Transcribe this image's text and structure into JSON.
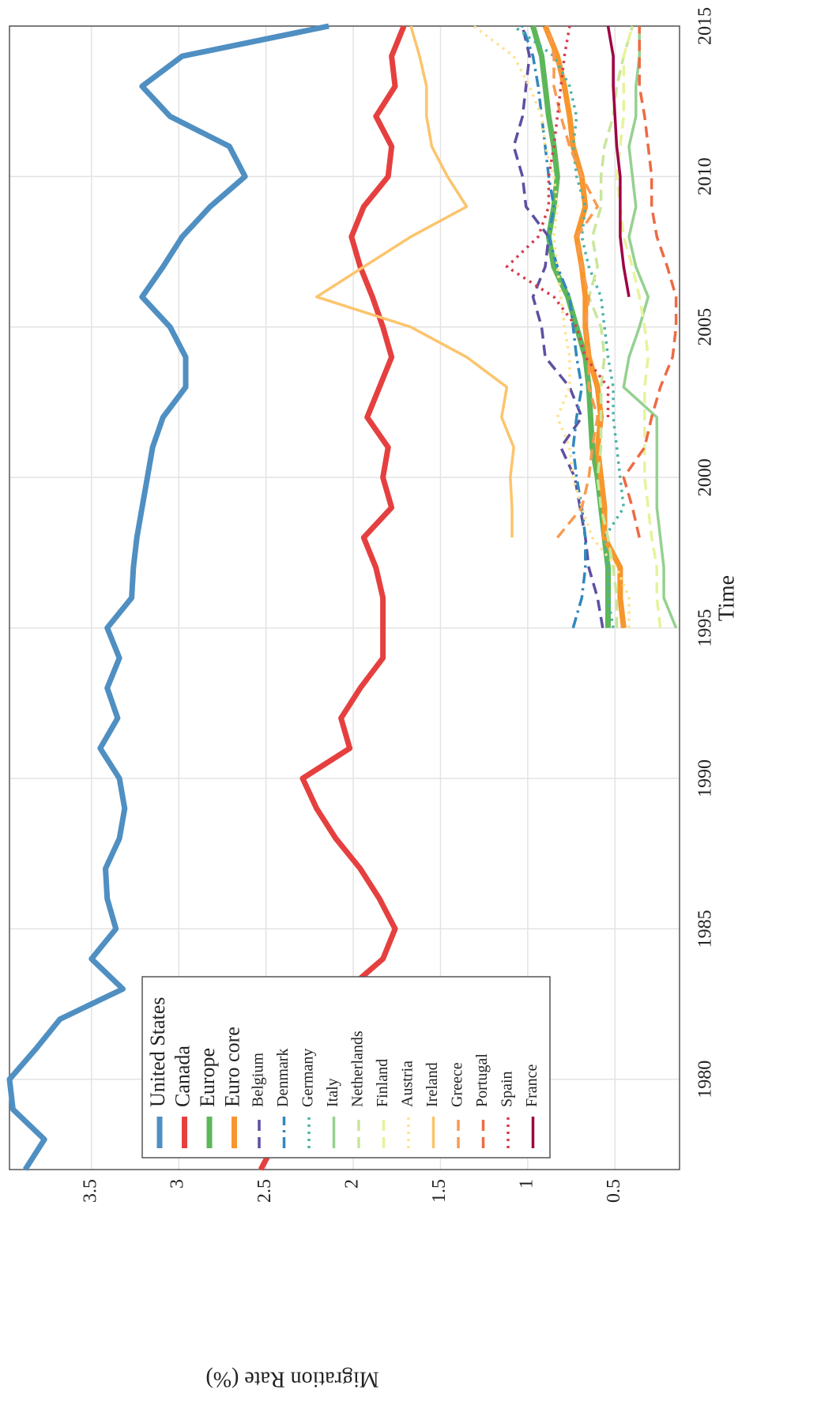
{
  "chart_data": {
    "type": "line",
    "x_label": "Time",
    "y_label": "Migration Rate (%)",
    "x": [
      1977,
      1978,
      1979,
      1980,
      1981,
      1982,
      1983,
      1984,
      1985,
      1986,
      1987,
      1988,
      1989,
      1990,
      1991,
      1992,
      1993,
      1994,
      1995,
      1996,
      1997,
      1998,
      1999,
      2000,
      2001,
      2002,
      2003,
      2004,
      2005,
      2006,
      2007,
      2008,
      2009,
      2010,
      2011,
      2012,
      2013,
      2014,
      2015
    ],
    "xlim": [
      1977,
      2015
    ],
    "xticks": [
      1980,
      1985,
      1990,
      1995,
      2000,
      2005,
      2010,
      2015
    ],
    "ylim": [
      0.13,
      3.97
    ],
    "yticks": [
      0.5,
      1,
      1.5,
      2,
      2.5,
      3,
      3.5
    ],
    "grid": true,
    "legend": "upper left",
    "rotation": -90,
    "series": [
      {
        "name": "United States",
        "color": "#4f8fc2",
        "linestyle": "solid",
        "linewidth": 7,
        "values": [
          3.88,
          3.77,
          3.95,
          3.97,
          3.82,
          3.68,
          3.32,
          3.5,
          3.36,
          3.41,
          3.42,
          3.34,
          3.31,
          3.34,
          3.45,
          3.35,
          3.41,
          3.34,
          3.41,
          3.27,
          3.26,
          3.24,
          3.21,
          3.18,
          3.15,
          3.09,
          2.96,
          2.96,
          3.05,
          3.21,
          3.09,
          2.98,
          2.82,
          2.62,
          2.71,
          3.05,
          3.21,
          2.98,
          2.14
        ]
      },
      {
        "name": "Canada",
        "color": "#e5403f",
        "linestyle": "solid",
        "linewidth": 7,
        "values": [
          2.53,
          2.44,
          2.41,
          2.48,
          2.53,
          2.46,
          2.03,
          1.83,
          1.76,
          1.85,
          1.96,
          2.1,
          2.21,
          2.29,
          2.02,
          2.07,
          1.96,
          1.83,
          1.83,
          1.83,
          1.87,
          1.94,
          1.78,
          1.83,
          1.8,
          1.92,
          1.85,
          1.78,
          1.83,
          1.89,
          1.96,
          2.01,
          1.94,
          1.8,
          1.78,
          1.87,
          1.76,
          1.78,
          1.71
        ]
      },
      {
        "name": "Europe",
        "color": "#5db75a",
        "linestyle": "solid",
        "linewidth": 7,
        "values": [
          null,
          null,
          null,
          null,
          null,
          null,
          null,
          null,
          null,
          null,
          null,
          null,
          null,
          null,
          null,
          null,
          null,
          null,
          0.54,
          0.54,
          0.54,
          0.56,
          0.58,
          0.6,
          0.63,
          0.64,
          0.65,
          0.67,
          0.72,
          0.77,
          0.85,
          0.88,
          0.85,
          0.83,
          0.85,
          0.88,
          0.9,
          0.92,
          0.97
        ]
      },
      {
        "name": "Euro core",
        "color": "#f7962c",
        "linestyle": "solid",
        "linewidth": 7,
        "values": [
          null,
          null,
          null,
          null,
          null,
          null,
          null,
          null,
          null,
          null,
          null,
          null,
          null,
          null,
          null,
          null,
          null,
          null,
          0.45,
          0.47,
          0.47,
          0.56,
          0.56,
          0.58,
          0.6,
          0.58,
          0.6,
          0.65,
          0.67,
          0.67,
          0.69,
          0.72,
          0.67,
          0.69,
          0.74,
          0.76,
          0.79,
          0.83,
          0.9
        ]
      },
      {
        "name": "Belgium",
        "color": "#5e4fa2",
        "linestyle": "dashed",
        "linewidth": 3.5,
        "values": [
          null,
          null,
          null,
          null,
          null,
          null,
          null,
          null,
          null,
          null,
          null,
          null,
          null,
          null,
          null,
          null,
          null,
          null,
          0.57,
          0.6,
          0.65,
          0.67,
          0.7,
          0.73,
          0.81,
          0.69,
          0.76,
          0.9,
          0.92,
          0.97,
          0.9,
          0.88,
          1.01,
          1.03,
          1.08,
          1.03,
          1.01,
          0.99,
          1.03
        ]
      },
      {
        "name": "Denmark",
        "color": "#3288bd",
        "linestyle": "dashdot",
        "linewidth": 3.5,
        "values": [
          null,
          null,
          null,
          null,
          null,
          null,
          null,
          null,
          null,
          null,
          null,
          null,
          null,
          null,
          null,
          null,
          null,
          null,
          0.74,
          0.69,
          0.67,
          0.67,
          0.69,
          0.72,
          0.74,
          0.72,
          0.69,
          0.72,
          0.74,
          0.76,
          0.83,
          0.88,
          0.85,
          0.88,
          0.9,
          0.92,
          0.94,
          0.97,
          1.03
        ]
      },
      {
        "name": "Germany",
        "color": "#4bb3a7",
        "linestyle": "dotted",
        "linewidth": 3.5,
        "values": [
          null,
          null,
          null,
          null,
          null,
          null,
          null,
          null,
          null,
          null,
          null,
          null,
          null,
          null,
          null,
          null,
          null,
          null,
          0.51,
          0.54,
          0.54,
          0.56,
          0.45,
          0.47,
          0.49,
          0.51,
          0.51,
          0.54,
          0.56,
          0.58,
          0.65,
          0.69,
          0.67,
          0.72,
          0.74,
          0.72,
          0.76,
          0.85,
          1.08
        ]
      },
      {
        "name": "Italy",
        "color": "#95d190",
        "linestyle": "solid",
        "linewidth": 3.5,
        "values": [
          null,
          null,
          null,
          null,
          null,
          null,
          null,
          null,
          null,
          null,
          null,
          null,
          null,
          null,
          null,
          null,
          null,
          null,
          0.15,
          0.22,
          0.22,
          0.24,
          0.26,
          0.26,
          0.26,
          0.26,
          0.45,
          0.42,
          0.36,
          0.31,
          0.38,
          0.42,
          0.38,
          0.4,
          0.42,
          0.38,
          0.38,
          0.36,
          0.36
        ]
      },
      {
        "name": "Netherlands",
        "color": "#c9e69a",
        "linestyle": "dashed",
        "linewidth": 3.5,
        "values": [
          null,
          null,
          null,
          null,
          null,
          null,
          null,
          null,
          null,
          null,
          null,
          null,
          null,
          null,
          null,
          null,
          null,
          null,
          0.49,
          0.49,
          0.51,
          0.54,
          0.58,
          0.6,
          0.58,
          0.58,
          0.58,
          0.56,
          0.58,
          0.65,
          0.6,
          0.63,
          0.58,
          0.58,
          0.56,
          0.51,
          0.49,
          0.45,
          0.4
        ]
      },
      {
        "name": "Finland",
        "color": "#e6f39b",
        "linestyle": "dashed",
        "linewidth": 3.5,
        "values": [
          null,
          null,
          null,
          null,
          null,
          null,
          null,
          null,
          null,
          null,
          null,
          null,
          null,
          null,
          null,
          null,
          null,
          null,
          0.24,
          0.26,
          0.26,
          0.29,
          0.31,
          0.33,
          0.33,
          0.33,
          0.33,
          0.31,
          0.33,
          0.36,
          0.4,
          0.45,
          0.47,
          0.49,
          0.47,
          0.45,
          0.45,
          0.45,
          0.4
        ]
      },
      {
        "name": "Austria",
        "color": "#fde28f",
        "linestyle": "dotted",
        "linewidth": 3.5,
        "values": [
          null,
          null,
          null,
          null,
          null,
          null,
          null,
          null,
          null,
          null,
          null,
          null,
          null,
          null,
          null,
          null,
          null,
          null,
          0.42,
          0.42,
          0.49,
          0.63,
          0.69,
          0.74,
          0.76,
          0.83,
          0.76,
          0.76,
          0.79,
          0.81,
          0.83,
          0.85,
          0.83,
          0.85,
          0.9,
          0.92,
          0.99,
          1.08,
          1.31
        ]
      },
      {
        "name": "Ireland",
        "color": "#fcc46c",
        "linestyle": "solid",
        "linewidth": 3.5,
        "values": [
          null,
          null,
          null,
          null,
          null,
          null,
          null,
          null,
          null,
          null,
          null,
          null,
          null,
          null,
          null,
          null,
          null,
          null,
          null,
          null,
          null,
          1.09,
          1.09,
          1.1,
          1.08,
          1.15,
          1.12,
          1.35,
          1.67,
          2.21,
          1.94,
          1.67,
          1.35,
          1.46,
          1.55,
          1.58,
          1.58,
          1.62,
          1.67
        ]
      },
      {
        "name": "Greece",
        "color": "#f99a50",
        "linestyle": "dashed",
        "linewidth": 3.5,
        "values": [
          null,
          null,
          null,
          null,
          null,
          null,
          null,
          null,
          null,
          null,
          null,
          null,
          null,
          null,
          null,
          null,
          null,
          null,
          null,
          null,
          null,
          0.83,
          0.69,
          0.65,
          0.63,
          0.6,
          0.65,
          0.65,
          0.67,
          0.65,
          0.69,
          0.72,
          0.6,
          0.69,
          0.76,
          0.81,
          0.85,
          0.85,
          0.88
        ]
      },
      {
        "name": "Portugal",
        "color": "#ee6a44",
        "linestyle": "dashed",
        "linewidth": 3.5,
        "values": [
          null,
          null,
          null,
          null,
          null,
          null,
          null,
          null,
          null,
          null,
          null,
          null,
          null,
          null,
          null,
          null,
          null,
          null,
          null,
          null,
          null,
          0.36,
          0.4,
          0.45,
          0.33,
          0.29,
          0.24,
          0.17,
          0.15,
          0.15,
          0.2,
          0.26,
          0.29,
          0.29,
          0.31,
          0.33,
          0.36,
          0.36,
          0.36
        ]
      },
      {
        "name": "Spain",
        "color": "#d53e4f",
        "linestyle": "dotted",
        "linewidth": 3.5,
        "values": [
          null,
          null,
          null,
          null,
          null,
          null,
          null,
          null,
          null,
          null,
          null,
          null,
          null,
          null,
          null,
          null,
          null,
          null,
          null,
          null,
          null,
          null,
          null,
          null,
          null,
          0.54,
          0.54,
          0.67,
          0.72,
          0.85,
          1.12,
          0.94,
          0.88,
          0.88,
          0.85,
          0.83,
          0.81,
          0.79,
          0.76
        ]
      },
      {
        "name": "France",
        "color": "#9e0142",
        "linestyle": "solid",
        "linewidth": 3.5,
        "values": [
          null,
          null,
          null,
          null,
          null,
          null,
          null,
          null,
          null,
          null,
          null,
          null,
          null,
          null,
          null,
          null,
          null,
          null,
          null,
          null,
          null,
          null,
          null,
          null,
          null,
          null,
          null,
          null,
          null,
          0.42,
          0.45,
          0.47,
          0.47,
          0.47,
          0.49,
          0.5,
          0.51,
          0.51,
          0.54
        ]
      }
    ]
  }
}
